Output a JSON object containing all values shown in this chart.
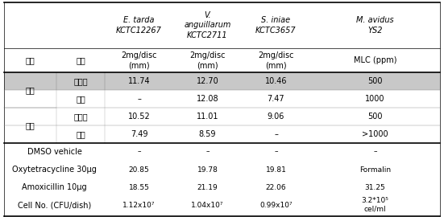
{
  "header_row1": [
    "",
    "",
    "E. tarda\nKCTC12267",
    "V.\nanguillarum\nKCTC2711",
    "S. iniae\nKCTC3657",
    "M. avidus\nYS2"
  ],
  "header_row2": [
    "산지",
    "부위",
    "2mg/disc\n(mm)",
    "2mg/disc\n(mm)",
    "2mg/disc\n(mm)",
    "MLC (ppm)"
  ],
  "data_rows": [
    [
      "원주",
      "목질부",
      "11.74",
      "12.70",
      "10.46",
      "500"
    ],
    [
      "원주",
      "껍질",
      "–",
      "12.08",
      "7.47",
      "1000"
    ],
    [
      "옥천",
      "목질부",
      "10.52",
      "11.01",
      "9.06",
      "500"
    ],
    [
      "옥천",
      "껍질",
      "7.49",
      "8.59",
      "–",
      ">1000"
    ]
  ],
  "bottom_rows": [
    [
      "DMSO vehicle",
      "–",
      "–",
      "–",
      "–"
    ],
    [
      "Oxytetracycline 30μg",
      "20.85",
      "19.78",
      "19.81",
      "Formalin"
    ],
    [
      "Amoxicillin 10μg",
      "18.55",
      "21.19",
      "22.06",
      "31.25"
    ],
    [
      "Cell No. (CFU/dish)",
      "1.12x10⁷",
      "1.04x10⁷",
      "0.99x10⁷",
      "3.2*10⁵\ncel/ml"
    ]
  ],
  "highlight_color": "#c8c8c8",
  "bg_color": "#ffffff",
  "font_size": 7.0,
  "small_font_size": 6.5
}
